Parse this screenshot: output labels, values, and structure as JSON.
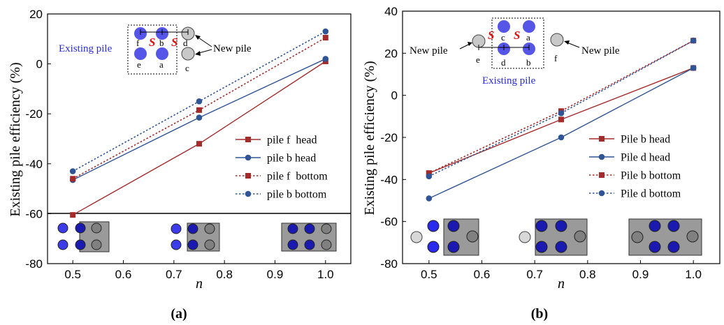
{
  "colors": {
    "red": "#a52a2a",
    "navy": "#2f5597",
    "pile_blue": "#3b3bea",
    "dark_pile": "#1a1ab0",
    "new_pile": "#c8c8c8",
    "cap": "#9a9a9a",
    "text_blue": "#2b2bd6",
    "s_red": "#e01010"
  },
  "chart_data": [
    {
      "type": "line",
      "panel_label": "(a)",
      "xlabel": "n",
      "ylabel": "Existing pile efficiency (%)",
      "xlim": [
        0.45,
        1.05
      ],
      "ylim": [
        -80,
        20
      ],
      "x_ticks": [
        "0.5",
        "0.6",
        "0.7",
        "0.8",
        "0.9",
        "1.0"
      ],
      "y_ticks": [
        "-80",
        "-60",
        "-40",
        "-20",
        "0",
        "20"
      ],
      "x": [
        0.5,
        0.75,
        1.0
      ],
      "series": [
        {
          "name": "pile f  head",
          "values": [
            -60.5,
            -32,
            1
          ],
          "style": "solid",
          "marker": "square",
          "color": "#a52a2a"
        },
        {
          "name": "pile b head",
          "values": [
            -46.5,
            -21.5,
            2
          ],
          "style": "solid",
          "marker": "circle",
          "color": "#2f5597"
        },
        {
          "name": "pile f  bottom",
          "values": [
            -46,
            -18.5,
            10.5
          ],
          "style": "dotted",
          "marker": "square",
          "color": "#a52a2a"
        },
        {
          "name": "pile b bottom",
          "values": [
            -43,
            -15,
            13
          ],
          "style": "dotted",
          "marker": "circle",
          "color": "#2f5597"
        }
      ],
      "inset": {
        "existing_label": "Existing pile",
        "new_label": "New pile",
        "spacing_symbol": "S",
        "pile_letters": [
          "f",
          "b",
          "d",
          "e",
          "a",
          "c"
        ]
      }
    },
    {
      "type": "line",
      "panel_label": "(b)",
      "xlabel": "n",
      "ylabel": "Existing pile efficiency (%)",
      "xlim": [
        0.45,
        1.05
      ],
      "ylim": [
        -80,
        40
      ],
      "x_ticks": [
        "0.5",
        "0.6",
        "0.7",
        "0.8",
        "0.9",
        "1.0"
      ],
      "y_ticks": [
        "-80",
        "-60",
        "-40",
        "-20",
        "0",
        "20",
        "40"
      ],
      "x": [
        0.5,
        0.75,
        1.0
      ],
      "series": [
        {
          "name": "Pile b head",
          "values": [
            -37,
            -11.5,
            13
          ],
          "style": "solid",
          "marker": "square",
          "color": "#a52a2a"
        },
        {
          "name": "Pile d head",
          "values": [
            -49,
            -20,
            13
          ],
          "style": "solid",
          "marker": "circle",
          "color": "#2f5597"
        },
        {
          "name": "Pile b bottom",
          "values": [
            -37,
            -7.5,
            26
          ],
          "style": "dotted",
          "marker": "square",
          "color": "#a52a2a"
        },
        {
          "name": "Pile d bottom",
          "values": [
            -38.5,
            -8.5,
            26
          ],
          "style": "dotted",
          "marker": "circle",
          "color": "#2f5597"
        }
      ],
      "inset": {
        "existing_label": "Existing pile",
        "new_label_left": "New pile",
        "new_label_right": "New pile",
        "spacing_symbol": "S",
        "pile_letters": [
          "c",
          "a",
          "e",
          "d",
          "b",
          "f"
        ]
      }
    }
  ]
}
